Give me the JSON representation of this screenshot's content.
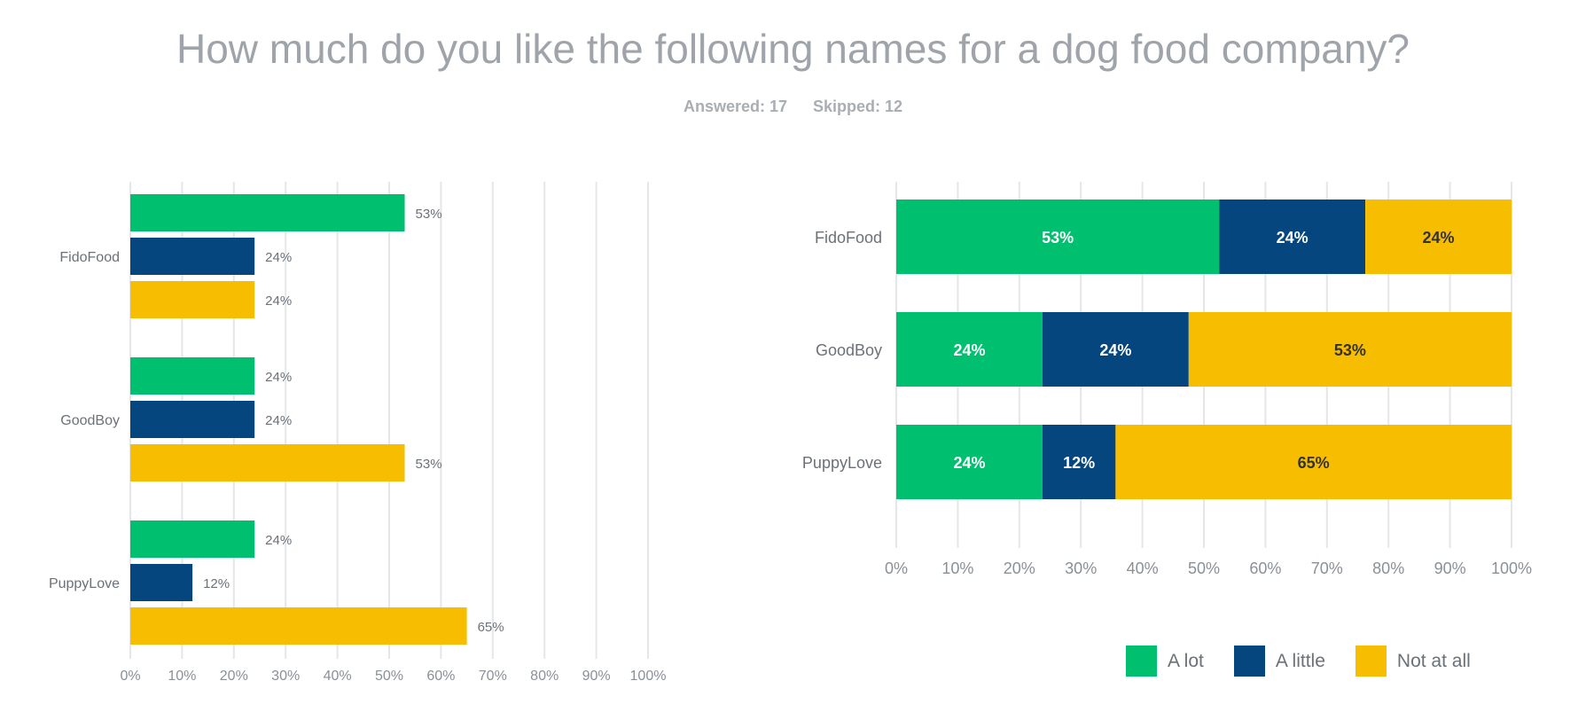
{
  "header": {
    "title": "How much do you like the following names for a dog food company?",
    "answered": "Answered: 17",
    "skipped": "Skipped: 12"
  },
  "colors": {
    "a_lot": "#00bf6f",
    "a_little": "#05467e",
    "not_at_all": "#f7bd00",
    "grid": "#e4e6e8"
  },
  "chart_data": [
    {
      "type": "bar",
      "orientation": "horizontal",
      "categories": [
        "FidoFood",
        "GoodBoy",
        "PuppyLove"
      ],
      "series": [
        {
          "name": "A lot",
          "values": [
            53,
            24,
            24
          ],
          "labels": [
            "53%",
            "24%",
            "24%"
          ]
        },
        {
          "name": "A little",
          "values": [
            24,
            24,
            12
          ],
          "labels": [
            "24%",
            "24%",
            "12%"
          ]
        },
        {
          "name": "Not at all",
          "values": [
            24,
            53,
            65
          ],
          "labels": [
            "24%",
            "53%",
            "65%"
          ]
        }
      ],
      "xlim": [
        0,
        100
      ],
      "xticks": [
        "0%",
        "10%",
        "20%",
        "30%",
        "40%",
        "50%",
        "60%",
        "70%",
        "80%",
        "90%",
        "100%"
      ],
      "grid": true
    },
    {
      "type": "bar",
      "orientation": "horizontal",
      "stacked": true,
      "categories": [
        "FidoFood",
        "GoodBoy",
        "PuppyLove"
      ],
      "series": [
        {
          "name": "A lot",
          "values": [
            53,
            24,
            24
          ],
          "labels": [
            "53%",
            "24%",
            "24%"
          ]
        },
        {
          "name": "A little",
          "values": [
            24,
            24,
            12
          ],
          "labels": [
            "24%",
            "24%",
            "12%"
          ]
        },
        {
          "name": "Not at all",
          "values": [
            24,
            53,
            65
          ],
          "labels": [
            "24%",
            "53%",
            "65%"
          ]
        }
      ],
      "xlim": [
        0,
        100
      ],
      "xticks": [
        "0%",
        "10%",
        "20%",
        "30%",
        "40%",
        "50%",
        "60%",
        "70%",
        "80%",
        "90%",
        "100%"
      ],
      "grid": true,
      "legend": "bottom-right"
    }
  ],
  "legend": [
    {
      "label": "A lot",
      "color": "#00bf6f"
    },
    {
      "label": "A little",
      "color": "#05467e"
    },
    {
      "label": "Not at all",
      "color": "#f7bd00"
    }
  ]
}
